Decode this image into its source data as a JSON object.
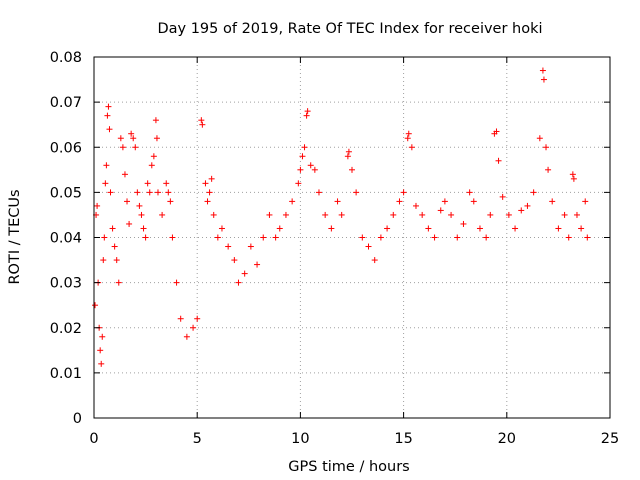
{
  "chart_data": {
    "type": "scatter",
    "title": "Day 195 of 2019, Rate Of TEC Index for receiver hoki",
    "xlabel": "GPS time / hours",
    "ylabel": "ROTI / TECUs",
    "xlim": [
      0,
      25
    ],
    "ylim": [
      0,
      0.08
    ],
    "xticks": [
      0,
      5,
      10,
      15,
      20,
      25
    ],
    "xtick_labels": [
      "0",
      "5",
      "10",
      "15",
      "20",
      "25"
    ],
    "yticks": [
      0,
      0.01,
      0.02,
      0.03,
      0.04,
      0.05,
      0.06,
      0.07,
      0.08
    ],
    "ytick_labels": [
      "0",
      "0.01",
      "0.02",
      "0.03",
      "0.04",
      "0.05",
      "0.06",
      "0.07",
      "0.08"
    ],
    "grid": true,
    "marker": "plus",
    "color": "#ff0000",
    "series": [
      {
        "name": "ROTI",
        "points": [
          [
            0.05,
            0.025
          ],
          [
            0.1,
            0.045
          ],
          [
            0.15,
            0.047
          ],
          [
            0.2,
            0.03
          ],
          [
            0.25,
            0.02
          ],
          [
            0.3,
            0.015
          ],
          [
            0.35,
            0.012
          ],
          [
            0.4,
            0.018
          ],
          [
            0.45,
            0.035
          ],
          [
            0.5,
            0.04
          ],
          [
            0.55,
            0.052
          ],
          [
            0.6,
            0.056
          ],
          [
            0.65,
            0.067
          ],
          [
            0.7,
            0.069
          ],
          [
            0.75,
            0.064
          ],
          [
            0.8,
            0.05
          ],
          [
            0.9,
            0.042
          ],
          [
            1.0,
            0.038
          ],
          [
            1.1,
            0.035
          ],
          [
            1.2,
            0.03
          ],
          [
            1.3,
            0.062
          ],
          [
            1.4,
            0.06
          ],
          [
            1.5,
            0.054
          ],
          [
            1.6,
            0.048
          ],
          [
            1.7,
            0.043
          ],
          [
            1.8,
            0.063
          ],
          [
            1.9,
            0.062
          ],
          [
            2.0,
            0.06
          ],
          [
            2.1,
            0.05
          ],
          [
            2.2,
            0.047
          ],
          [
            2.3,
            0.045
          ],
          [
            2.4,
            0.042
          ],
          [
            2.5,
            0.04
          ],
          [
            2.6,
            0.052
          ],
          [
            2.7,
            0.05
          ],
          [
            2.8,
            0.056
          ],
          [
            2.9,
            0.058
          ],
          [
            3.0,
            0.066
          ],
          [
            3.05,
            0.062
          ],
          [
            3.1,
            0.05
          ],
          [
            3.3,
            0.045
          ],
          [
            3.5,
            0.052
          ],
          [
            3.6,
            0.05
          ],
          [
            3.7,
            0.048
          ],
          [
            3.8,
            0.04
          ],
          [
            4.0,
            0.03
          ],
          [
            4.2,
            0.022
          ],
          [
            4.5,
            0.018
          ],
          [
            4.8,
            0.02
          ],
          [
            5.0,
            0.022
          ],
          [
            5.2,
            0.066
          ],
          [
            5.25,
            0.065
          ],
          [
            5.4,
            0.052
          ],
          [
            5.5,
            0.048
          ],
          [
            5.6,
            0.05
          ],
          [
            5.7,
            0.053
          ],
          [
            5.8,
            0.045
          ],
          [
            6.0,
            0.04
          ],
          [
            6.2,
            0.042
          ],
          [
            6.5,
            0.038
          ],
          [
            6.8,
            0.035
          ],
          [
            7.0,
            0.03
          ],
          [
            7.3,
            0.032
          ],
          [
            7.6,
            0.038
          ],
          [
            7.9,
            0.034
          ],
          [
            8.2,
            0.04
          ],
          [
            8.5,
            0.045
          ],
          [
            8.8,
            0.04
          ],
          [
            9.0,
            0.042
          ],
          [
            9.3,
            0.045
          ],
          [
            9.6,
            0.048
          ],
          [
            9.9,
            0.052
          ],
          [
            10.0,
            0.055
          ],
          [
            10.1,
            0.058
          ],
          [
            10.2,
            0.06
          ],
          [
            10.3,
            0.067
          ],
          [
            10.35,
            0.068
          ],
          [
            10.5,
            0.056
          ],
          [
            10.7,
            0.055
          ],
          [
            10.9,
            0.05
          ],
          [
            11.2,
            0.045
          ],
          [
            11.5,
            0.042
          ],
          [
            11.8,
            0.048
          ],
          [
            12.0,
            0.045
          ],
          [
            12.3,
            0.058
          ],
          [
            12.35,
            0.059
          ],
          [
            12.5,
            0.055
          ],
          [
            12.7,
            0.05
          ],
          [
            13.0,
            0.04
          ],
          [
            13.3,
            0.038
          ],
          [
            13.6,
            0.035
          ],
          [
            13.9,
            0.04
          ],
          [
            14.2,
            0.042
          ],
          [
            14.5,
            0.045
          ],
          [
            14.8,
            0.048
          ],
          [
            15.0,
            0.05
          ],
          [
            15.2,
            0.062
          ],
          [
            15.25,
            0.063
          ],
          [
            15.4,
            0.06
          ],
          [
            15.6,
            0.047
          ],
          [
            15.9,
            0.045
          ],
          [
            16.2,
            0.042
          ],
          [
            16.5,
            0.04
          ],
          [
            16.8,
            0.046
          ],
          [
            17.0,
            0.048
          ],
          [
            17.3,
            0.045
          ],
          [
            17.6,
            0.04
          ],
          [
            17.9,
            0.043
          ],
          [
            18.2,
            0.05
          ],
          [
            18.4,
            0.048
          ],
          [
            18.7,
            0.042
          ],
          [
            19.0,
            0.04
          ],
          [
            19.2,
            0.045
          ],
          [
            19.4,
            0.063
          ],
          [
            19.5,
            0.0635
          ],
          [
            19.6,
            0.057
          ],
          [
            19.8,
            0.049
          ],
          [
            20.1,
            0.045
          ],
          [
            20.4,
            0.042
          ],
          [
            20.7,
            0.046
          ],
          [
            21.0,
            0.047
          ],
          [
            21.3,
            0.05
          ],
          [
            21.6,
            0.062
          ],
          [
            21.75,
            0.077
          ],
          [
            21.8,
            0.075
          ],
          [
            21.9,
            0.06
          ],
          [
            22.0,
            0.055
          ],
          [
            22.2,
            0.048
          ],
          [
            22.5,
            0.042
          ],
          [
            22.8,
            0.045
          ],
          [
            23.0,
            0.04
          ],
          [
            23.2,
            0.054
          ],
          [
            23.25,
            0.053
          ],
          [
            23.4,
            0.045
          ],
          [
            23.6,
            0.042
          ],
          [
            23.8,
            0.048
          ],
          [
            23.9,
            0.04
          ]
        ]
      }
    ]
  }
}
